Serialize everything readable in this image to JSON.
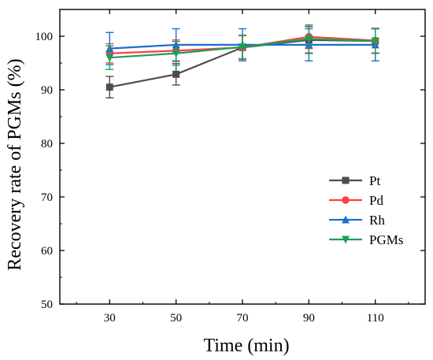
{
  "chart_data": {
    "type": "line",
    "xlabel": "Time (min)",
    "ylabel": "Recovery rate of PGMs (%)",
    "x": [
      30,
      50,
      70,
      90,
      110
    ],
    "xlim": [
      15,
      125
    ],
    "ylim": [
      50,
      105
    ],
    "xticks": [
      "30",
      "50",
      "70",
      "90",
      "110"
    ],
    "yticks": [
      "50",
      "60",
      "70",
      "80",
      "90",
      "100"
    ],
    "legend_position": "lower-right",
    "grid": false,
    "series": [
      {
        "name": "Pt",
        "color": "#4d4d4d",
        "marker": "square",
        "values": [
          90.5,
          92.9,
          97.9,
          99.3,
          99.1
        ],
        "errors": [
          2.0,
          2.0,
          2.2,
          2.5,
          2.3
        ]
      },
      {
        "name": "Pd",
        "color": "#ff4040",
        "marker": "circle",
        "values": [
          96.8,
          97.3,
          97.9,
          99.9,
          99.2
        ],
        "errors": [
          1.8,
          2.0,
          2.2,
          2.2,
          2.3
        ]
      },
      {
        "name": "Rh",
        "color": "#1a6fcf",
        "marker": "triangle-up",
        "values": [
          97.7,
          98.4,
          98.4,
          98.4,
          98.4
        ],
        "errors": [
          3.0,
          3.0,
          3.0,
          3.0,
          3.0
        ]
      },
      {
        "name": "PGMs",
        "color": "#1f9e5a",
        "marker": "triangle-down",
        "values": [
          96.0,
          96.8,
          98.0,
          99.5,
          99.1
        ],
        "errors": [
          2.2,
          2.2,
          2.2,
          2.6,
          2.3
        ]
      }
    ]
  }
}
